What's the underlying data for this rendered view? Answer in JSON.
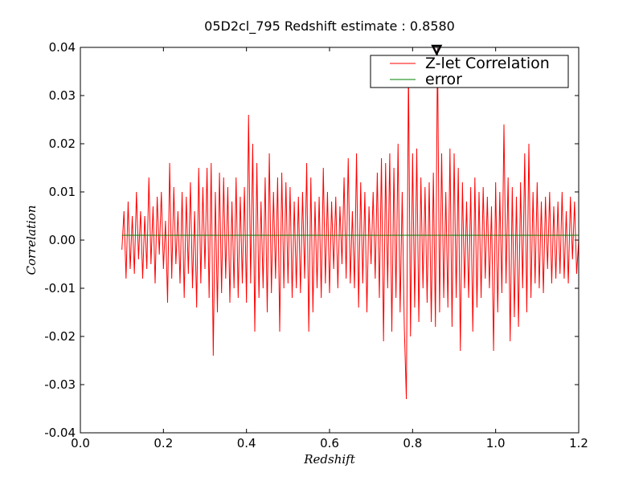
{
  "chart_data": {
    "type": "line",
    "title": "05D2cl_795 Redshift estimate : 0.8580",
    "x_label": "Redshift",
    "y_label": "Correlation",
    "xlim": [
      0,
      1.2
    ],
    "ylim": [
      -0.04,
      0.04
    ],
    "xticks": [
      {
        "value": 0,
        "label": "0.0"
      },
      0.2,
      0.4,
      0.6,
      0.8,
      {
        "value": 1,
        "label": "1.0"
      },
      1.2
    ],
    "yticks": [
      -0.04,
      -0.03,
      -0.02,
      -0.01,
      {
        "value": 0,
        "label": "0.00"
      },
      0.01,
      0.02,
      0.03,
      0.04
    ],
    "legend": "upper right",
    "marker": {
      "x": 0.858,
      "y": 0.039,
      "color": "#000000"
    },
    "series": [
      {
        "name": "Z-let Correlation",
        "color": "#ff0000",
        "x": [
          0.1,
          0.105,
          0.11,
          0.115,
          0.12,
          0.125,
          0.13,
          0.135,
          0.14,
          0.145,
          0.15,
          0.155,
          0.16,
          0.165,
          0.17,
          0.175,
          0.18,
          0.185,
          0.19,
          0.195,
          0.2,
          0.205,
          0.21,
          0.215,
          0.22,
          0.225,
          0.23,
          0.235,
          0.24,
          0.245,
          0.25,
          0.255,
          0.26,
          0.265,
          0.27,
          0.275,
          0.28,
          0.285,
          0.29,
          0.295,
          0.3,
          0.305,
          0.31,
          0.315,
          0.32,
          0.325,
          0.33,
          0.335,
          0.34,
          0.345,
          0.35,
          0.355,
          0.36,
          0.365,
          0.37,
          0.375,
          0.38,
          0.385,
          0.39,
          0.395,
          0.4,
          0.405,
          0.41,
          0.415,
          0.42,
          0.425,
          0.43,
          0.435,
          0.44,
          0.445,
          0.45,
          0.455,
          0.46,
          0.465,
          0.47,
          0.475,
          0.48,
          0.485,
          0.49,
          0.495,
          0.5,
          0.505,
          0.51,
          0.515,
          0.52,
          0.525,
          0.53,
          0.535,
          0.54,
          0.545,
          0.55,
          0.555,
          0.56,
          0.565,
          0.57,
          0.575,
          0.58,
          0.585,
          0.59,
          0.595,
          0.6,
          0.605,
          0.61,
          0.615,
          0.62,
          0.625,
          0.63,
          0.635,
          0.64,
          0.645,
          0.65,
          0.655,
          0.66,
          0.665,
          0.67,
          0.675,
          0.68,
          0.685,
          0.69,
          0.695,
          0.7,
          0.705,
          0.71,
          0.715,
          0.72,
          0.725,
          0.73,
          0.735,
          0.74,
          0.745,
          0.75,
          0.755,
          0.76,
          0.765,
          0.77,
          0.775,
          0.78,
          0.785,
          0.79,
          0.795,
          0.8,
          0.805,
          0.81,
          0.815,
          0.82,
          0.825,
          0.83,
          0.835,
          0.84,
          0.845,
          0.85,
          0.855,
          0.86,
          0.865,
          0.87,
          0.875,
          0.88,
          0.885,
          0.89,
          0.895,
          0.9,
          0.905,
          0.91,
          0.915,
          0.92,
          0.925,
          0.93,
          0.935,
          0.94,
          0.945,
          0.95,
          0.955,
          0.96,
          0.965,
          0.97,
          0.975,
          0.98,
          0.985,
          0.99,
          0.995,
          1.0,
          1.005,
          1.01,
          1.015,
          1.02,
          1.025,
          1.03,
          1.035,
          1.04,
          1.045,
          1.05,
          1.055,
          1.06,
          1.065,
          1.07,
          1.075,
          1.08,
          1.085,
          1.09,
          1.095,
          1.1,
          1.105,
          1.11,
          1.115,
          1.12,
          1.125,
          1.13,
          1.135,
          1.14,
          1.145,
          1.15,
          1.155,
          1.16,
          1.165,
          1.17,
          1.175,
          1.18,
          1.185,
          1.19,
          1.195,
          1.2
        ],
        "values": [
          -0.002,
          0.006,
          -0.008,
          0.008,
          -0.006,
          0.005,
          -0.007,
          0.01,
          -0.004,
          0.006,
          -0.008,
          0.005,
          -0.006,
          0.013,
          -0.005,
          0.007,
          -0.009,
          0.009,
          -0.003,
          0.01,
          -0.006,
          0.004,
          -0.013,
          0.016,
          -0.008,
          0.011,
          -0.005,
          0.006,
          -0.009,
          0.01,
          -0.012,
          0.009,
          -0.007,
          0.012,
          -0.01,
          0.006,
          -0.014,
          0.015,
          -0.009,
          0.011,
          -0.006,
          0.015,
          -0.012,
          0.016,
          -0.024,
          0.01,
          -0.015,
          0.014,
          -0.011,
          0.013,
          -0.008,
          0.011,
          -0.013,
          0.008,
          -0.01,
          0.013,
          -0.012,
          0.009,
          -0.009,
          0.011,
          -0.013,
          0.026,
          -0.009,
          0.02,
          -0.019,
          0.016,
          -0.012,
          0.008,
          -0.01,
          0.013,
          -0.015,
          0.018,
          -0.011,
          0.01,
          -0.008,
          0.013,
          -0.019,
          0.014,
          -0.01,
          0.012,
          -0.009,
          0.011,
          -0.012,
          0.008,
          -0.01,
          0.009,
          -0.011,
          0.01,
          -0.008,
          0.016,
          -0.019,
          0.013,
          -0.015,
          0.008,
          -0.01,
          0.009,
          -0.012,
          0.015,
          -0.009,
          0.01,
          -0.011,
          0.008,
          -0.006,
          0.009,
          -0.01,
          0.007,
          -0.005,
          0.013,
          -0.008,
          0.017,
          -0.009,
          0.006,
          -0.01,
          0.018,
          -0.014,
          0.012,
          -0.009,
          0.01,
          -0.015,
          0.007,
          -0.005,
          0.01,
          -0.008,
          0.014,
          -0.012,
          0.017,
          -0.021,
          0.016,
          -0.01,
          0.018,
          -0.019,
          0.015,
          -0.012,
          0.02,
          -0.015,
          0.01,
          -0.018,
          -0.033,
          0.036,
          -0.02,
          0.018,
          -0.014,
          0.019,
          -0.017,
          0.013,
          -0.01,
          0.011,
          -0.013,
          0.012,
          -0.017,
          0.014,
          -0.018,
          0.04,
          -0.015,
          0.018,
          -0.012,
          0.01,
          -0.014,
          0.019,
          -0.018,
          0.018,
          -0.012,
          0.015,
          -0.023,
          0.012,
          -0.01,
          0.008,
          -0.012,
          0.011,
          -0.019,
          0.013,
          -0.014,
          0.01,
          -0.012,
          0.011,
          -0.008,
          0.009,
          -0.01,
          0.007,
          -0.023,
          0.012,
          -0.015,
          0.01,
          -0.011,
          0.024,
          -0.009,
          0.013,
          -0.021,
          0.011,
          -0.016,
          0.009,
          -0.018,
          0.012,
          -0.01,
          0.018,
          -0.015,
          0.02,
          -0.012,
          0.01,
          -0.009,
          0.012,
          -0.01,
          0.008,
          -0.011,
          0.009,
          -0.006,
          0.01,
          -0.009,
          0.007,
          -0.008,
          0.008,
          -0.007,
          0.01,
          -0.008,
          0.006,
          -0.009,
          0.009,
          -0.004,
          0.008,
          -0.007,
          0.0
        ]
      },
      {
        "name": "error",
        "color": "#008000",
        "x": [
          0.1,
          1.2
        ],
        "values": [
          0.001,
          0.001
        ]
      }
    ]
  }
}
